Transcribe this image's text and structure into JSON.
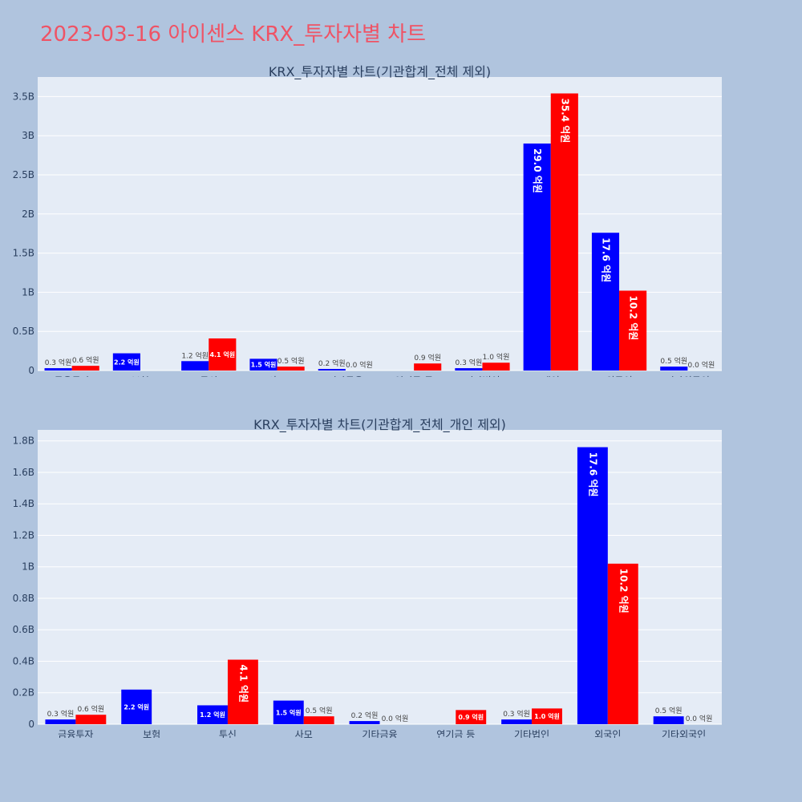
{
  "page": {
    "title": "2023-03-16 아이센스 KRX_투자자별 차트"
  },
  "colors": {
    "buy": "#0000ff",
    "sell": "#ff0000",
    "background": "#b0c4de",
    "plot_bg": "#e5ecf6",
    "title": "#ef5365"
  },
  "chart_data": [
    {
      "type": "bar",
      "title": "KRX_투자자별 차트(기관합계_전체 제외)",
      "categories": [
        "금융투자",
        "보험",
        "투신",
        "사모",
        "기타금융",
        "연기금 등",
        "기타법인",
        "개인",
        "외국인",
        "기타외국인"
      ],
      "series": [
        {
          "values": [
            30000000,
            220000000,
            120000000,
            150000000,
            20000000,
            0,
            30000000,
            2900000000,
            1760000000,
            50000000
          ],
          "labels": [
            "0.3 억원",
            "2.2 억원",
            "1.2 억원",
            "1.5 억원",
            "0.2 억원",
            "",
            "0.3 억원",
            "29.0 억원",
            "17.6 억원",
            "0.5 억원"
          ]
        },
        {
          "values": [
            60000000,
            0,
            410000000,
            50000000,
            0,
            90000000,
            100000000,
            3540000000,
            1020000000,
            0
          ],
          "labels": [
            "0.6 억원",
            "",
            "4.1 억원",
            "0.5 억원",
            "0.0 억원",
            "0.9 억원",
            "1.0 억원",
            "35.4 억원",
            "10.2 억원",
            "0.0 억원"
          ]
        }
      ],
      "ylim": [
        0,
        3750000000
      ],
      "yticks": [
        0,
        500000000,
        1000000000,
        1500000000,
        2000000000,
        2500000000,
        3000000000,
        3500000000
      ],
      "ytick_labels": [
        "0",
        "0.5B",
        "1B",
        "1.5B",
        "2B",
        "2.5B",
        "3B",
        "3.5B"
      ],
      "grid": true
    },
    {
      "type": "bar",
      "title": "KRX_투자자별 차트(기관합계_전체_개인 제외)",
      "categories": [
        "금융투자",
        "보험",
        "투신",
        "사모",
        "기타금융",
        "연기금 등",
        "기타법인",
        "외국인",
        "기타외국인"
      ],
      "series": [
        {
          "values": [
            30000000,
            220000000,
            120000000,
            150000000,
            20000000,
            0,
            30000000,
            1760000000,
            50000000
          ],
          "labels": [
            "0.3 억원",
            "2.2 억원",
            "1.2 억원",
            "1.5 억원",
            "0.2 억원",
            "",
            "0.3 억원",
            "17.6 억원",
            "0.5 억원"
          ]
        },
        {
          "values": [
            60000000,
            0,
            410000000,
            50000000,
            0,
            90000000,
            100000000,
            1020000000,
            0
          ],
          "labels": [
            "0.6 억원",
            "",
            "4.1 억원",
            "0.5 억원",
            "0.0 억원",
            "0.9 억원",
            "1.0 억원",
            "10.2 억원",
            "0.0 억원"
          ]
        }
      ],
      "ylim": [
        0,
        1870000000
      ],
      "yticks": [
        0,
        200000000,
        400000000,
        600000000,
        800000000,
        1000000000,
        1200000000,
        1400000000,
        1600000000,
        1800000000
      ],
      "ytick_labels": [
        "0",
        "0.2B",
        "0.4B",
        "0.6B",
        "0.8B",
        "1B",
        "1.2B",
        "1.4B",
        "1.6B",
        "1.8B"
      ],
      "grid": true
    }
  ]
}
